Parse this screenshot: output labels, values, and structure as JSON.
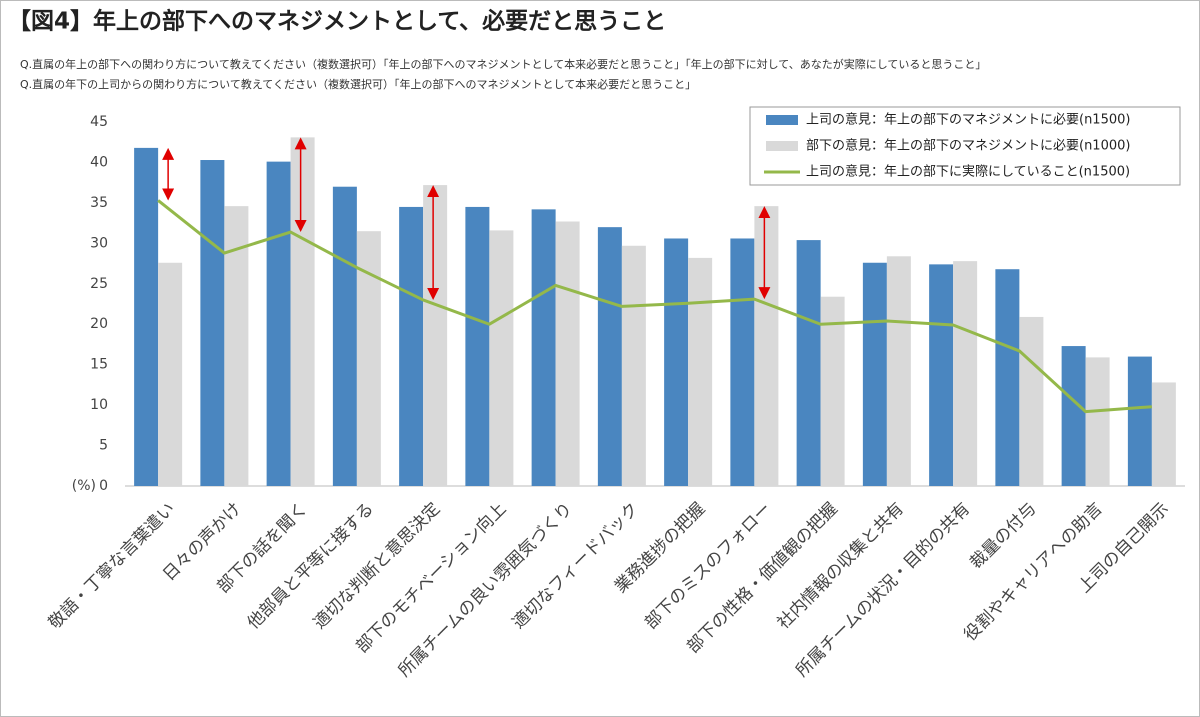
{
  "chart_data": {
    "type": "bar",
    "title": "【図4】年上の部下へのマネジメントとして、必要だと思うこと",
    "subtitles": [
      "Q.直属の年上の部下への関わり方について教えてください（複数選択可）「年上の部下へのマネジメントとして本来必要だと思うこと」「年上の部下に対して、あなたが実際にしていると思うこと」",
      "Q.直属の年下の上司からの関わり方について教えてください（複数選択可）「年上の部下へのマネジメントとして本来必要だと思うこと」"
    ],
    "y_unit": "(%)",
    "categories": [
      "敬語・丁寧な言葉遣い",
      "日々の声かけ",
      "部下の話を聞く",
      "他部員と平等に接する",
      "適切な判断と意思決定",
      "部下のモチベーション向上",
      "所属チームの良い雰囲気づくり",
      "適切なフィードバック",
      "業務進捗の把握",
      "部下のミスのフォロー",
      "部下の性格・価値観の把握",
      "社内情報の収集と共有",
      "所属チームの状況・目的の共有",
      "裁量の付与",
      "役割やキャリアへの助言",
      "上司の自己開示"
    ],
    "series": [
      {
        "name": "上司の意見：年上の部下のマネジメントに必要(n1500)",
        "color": "#4a86c0",
        "kind": "bar",
        "values": [
          41.8,
          40.3,
          40.1,
          37.0,
          34.5,
          34.5,
          34.2,
          32.0,
          30.6,
          30.6,
          30.4,
          27.6,
          27.4,
          26.8,
          17.3,
          16.0
        ]
      },
      {
        "name": "部下の意見：年上の部下のマネジメントに必要(n1000)",
        "color": "#d9d9d9",
        "kind": "bar",
        "values": [
          27.6,
          34.6,
          43.1,
          31.5,
          37.2,
          31.6,
          32.7,
          29.7,
          28.2,
          34.6,
          23.4,
          28.4,
          27.8,
          20.9,
          15.9,
          12.8
        ]
      },
      {
        "name": "上司の意見：年上の部下に実際にしていること(n1500)",
        "color": "#94b84a",
        "kind": "line",
        "values": [
          35.3,
          28.8,
          31.4,
          27.0,
          23.0,
          20.0,
          24.8,
          22.2,
          22.6,
          23.1,
          20.0,
          20.4,
          19.9,
          16.7,
          9.2,
          9.8
        ]
      }
    ],
    "ylim": [
      0,
      45
    ],
    "yticks": [
      0,
      5,
      10,
      15,
      20,
      25,
      30,
      35,
      40,
      45
    ],
    "grid": false,
    "annotation_color": "#e00000"
  }
}
